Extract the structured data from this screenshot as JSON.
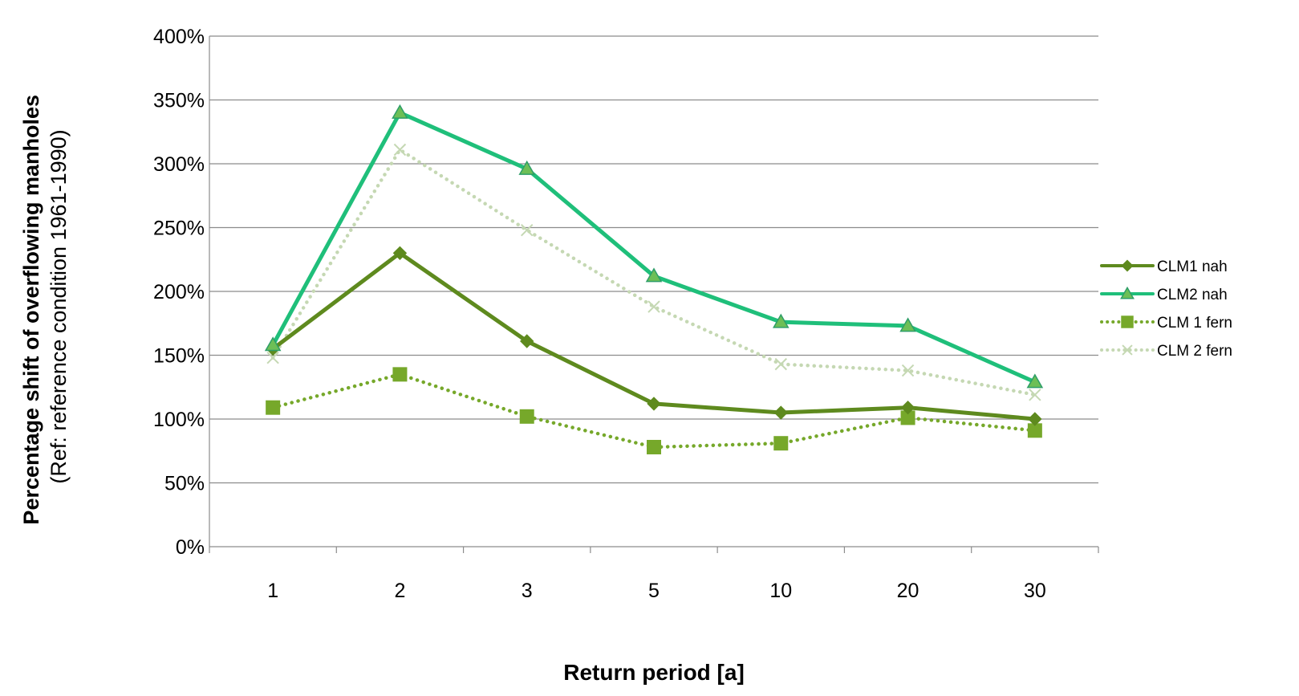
{
  "chart_data": {
    "type": "line",
    "categories": [
      "1",
      "2",
      "3",
      "5",
      "10",
      "20",
      "30"
    ],
    "ylim": [
      0,
      400
    ],
    "ytick_step": 50,
    "ytick_suffix": "%",
    "grid": true,
    "legend_position": "right",
    "ylabel_bold": "Percentage shift of overflowing manholes",
    "ylabel_sub": "(Ref: reference condition 1961-1990)",
    "xlabel": "Return period [a]",
    "series": [
      {
        "name": "CLM1 nah",
        "values": [
          155,
          230,
          161,
          112,
          105,
          109,
          100
        ],
        "color": "#5e8a1e",
        "dash": "solid",
        "marker": "diamond"
      },
      {
        "name": "CLM2 nah",
        "values": [
          158,
          340,
          296,
          212,
          176,
          173,
          129
        ],
        "color": "#1fbf7a",
        "dash": "solid",
        "marker": "triangle"
      },
      {
        "name": "CLM 1 fern",
        "values": [
          109,
          135,
          102,
          78,
          81,
          101,
          91
        ],
        "color": "#76a82a",
        "dash": "dotted",
        "marker": "square"
      },
      {
        "name": "CLM 2 fern",
        "values": [
          148,
          311,
          248,
          188,
          143,
          138,
          119
        ],
        "color": "#c5d8b3",
        "dash": "dotted",
        "marker": "x"
      }
    ]
  }
}
